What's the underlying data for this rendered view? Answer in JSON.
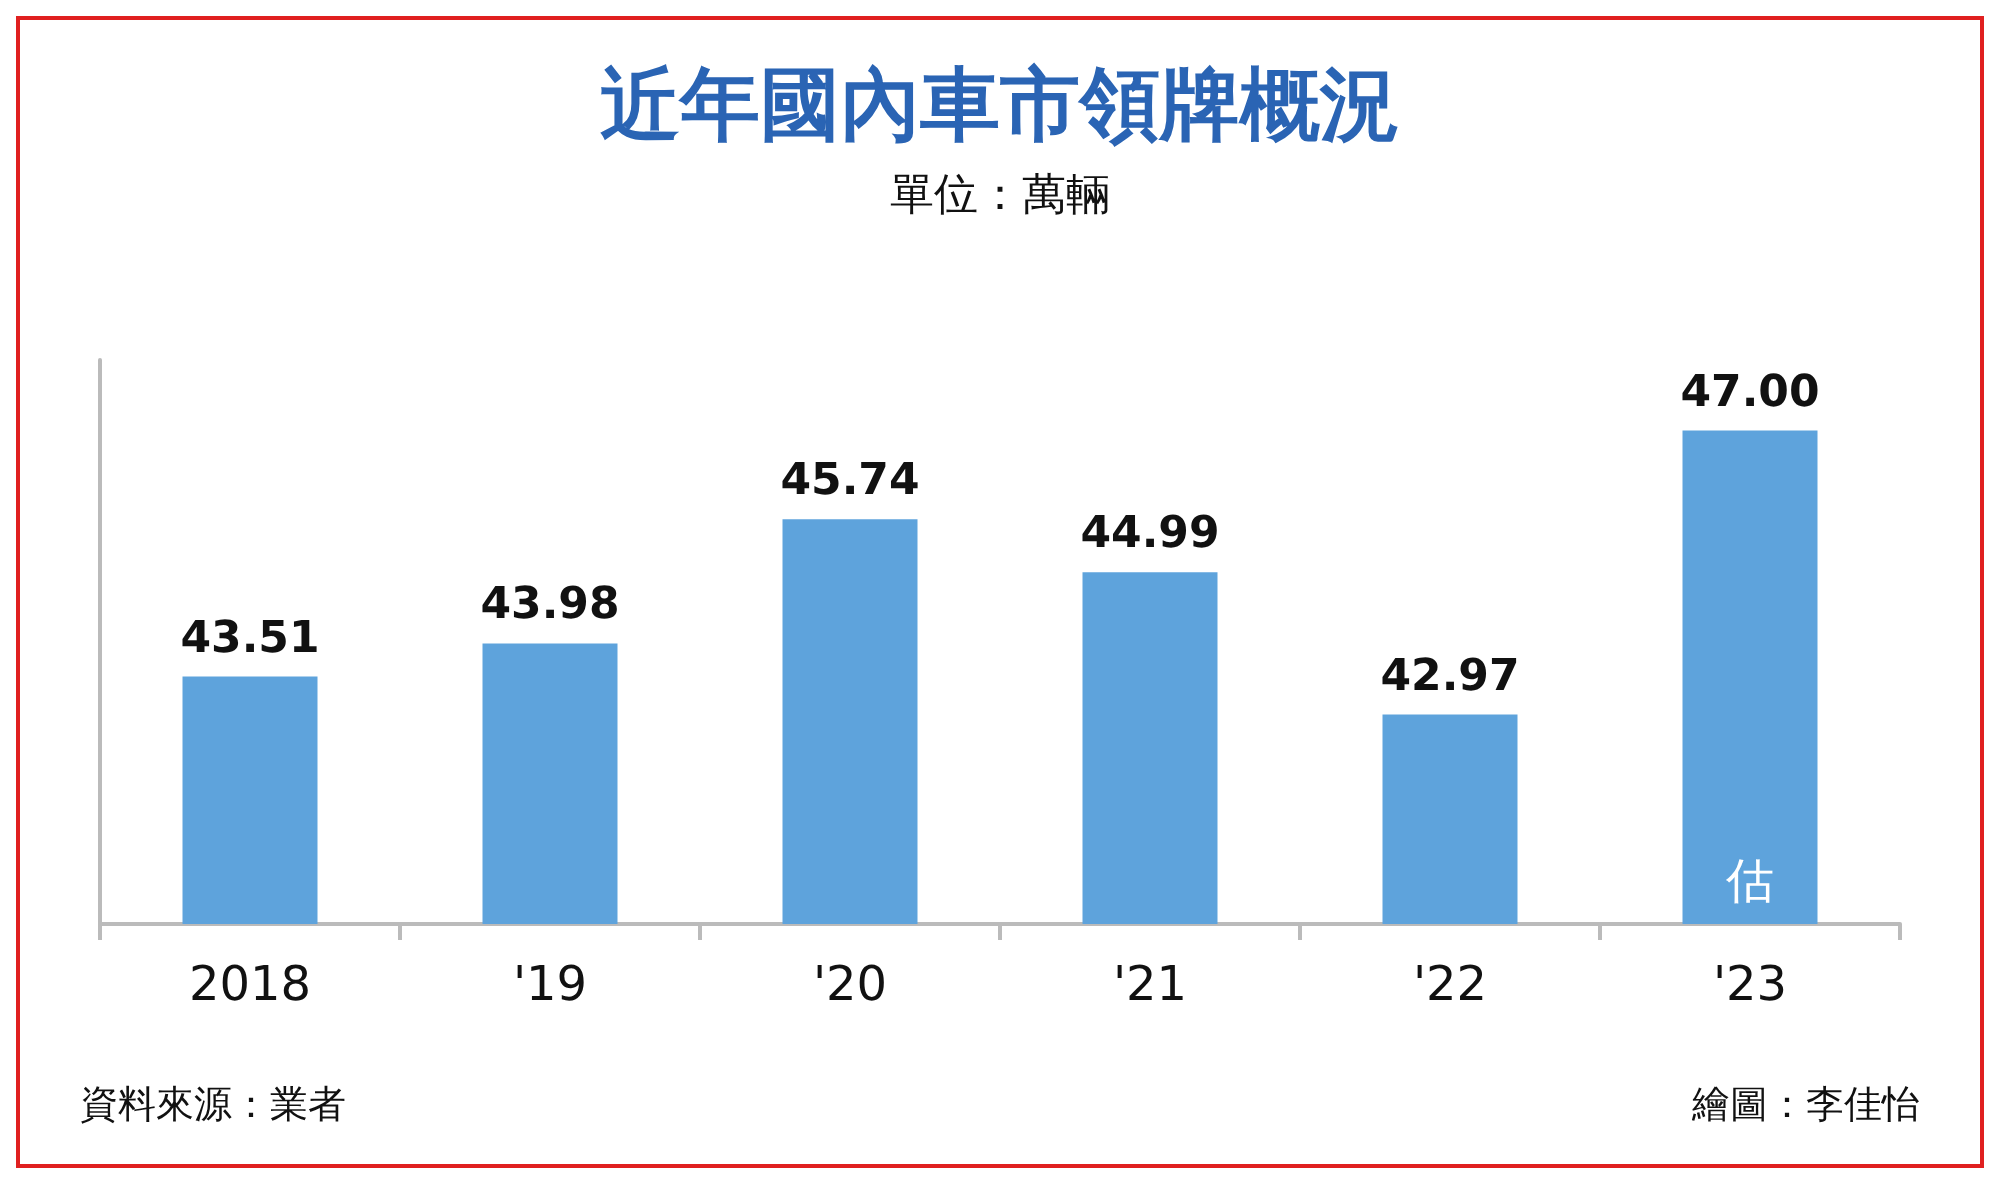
{
  "chart_data": {
    "type": "bar",
    "title": "近年國內車市領牌概況",
    "subtitle": "單位：萬輛",
    "categories": [
      "2018",
      "'19",
      "'20",
      "'21",
      "'22",
      "'23"
    ],
    "values": [
      43.51,
      43.98,
      45.74,
      44.99,
      42.97,
      47.0
    ],
    "value_labels": [
      "43.51",
      "43.98",
      "45.74",
      "44.99",
      "42.97",
      "47.00"
    ],
    "color": "#5ea3dc",
    "tick_labels": "x",
    "ylim": [
      40,
      48
    ],
    "annotations": [
      "估",
      "資料來源：業者",
      "繪圖：李佳怡"
    ]
  }
}
